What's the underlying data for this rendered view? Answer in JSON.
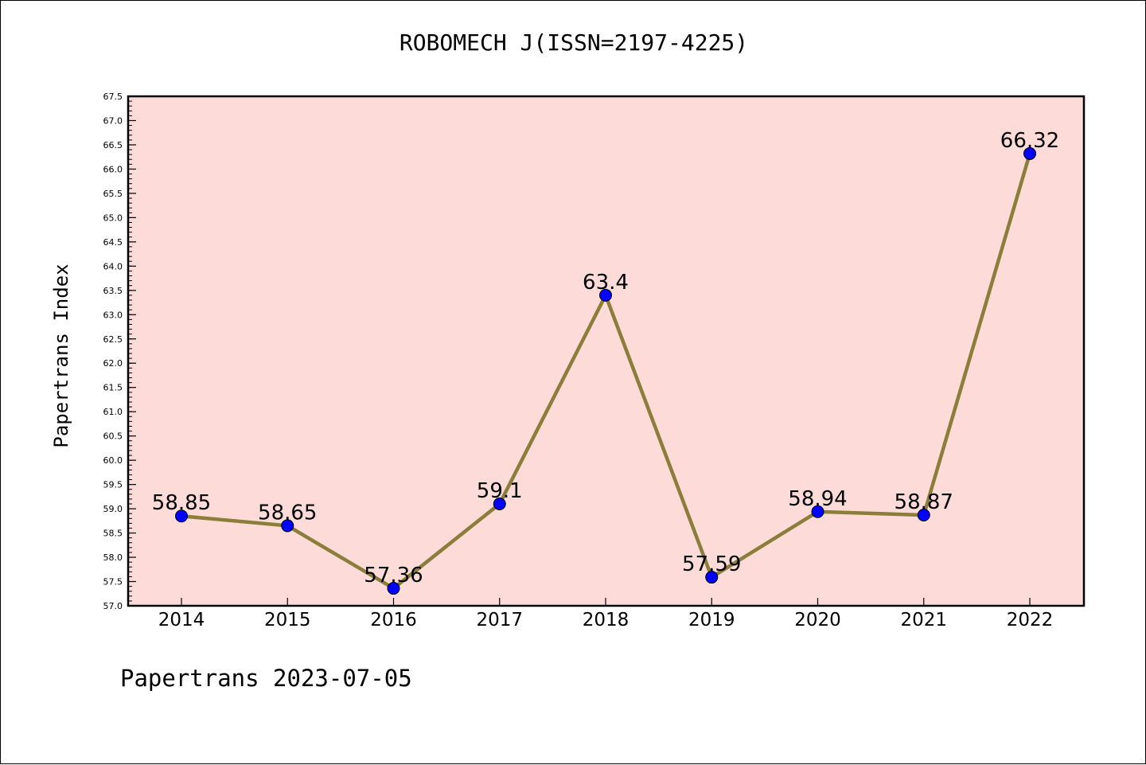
{
  "chart_data": {
    "type": "line",
    "title": "ROBOMECH J(ISSN=2197-4225)",
    "ylabel": "Papertrans Index",
    "xlabel": "",
    "categories": [
      "2014",
      "2015",
      "2016",
      "2017",
      "2018",
      "2019",
      "2020",
      "2021",
      "2022"
    ],
    "series": [
      {
        "values": [
          58.85,
          58.65,
          57.36,
          59.1,
          63.4,
          57.59,
          58.94,
          58.87,
          66.32
        ],
        "data_labels": [
          "58.85",
          "58.65",
          "57.36",
          "59.1",
          "63.4",
          "57.59",
          "58.94",
          "58.87",
          "66.32"
        ]
      }
    ],
    "ylim": [
      57.0,
      67.5
    ],
    "y_ticks": [
      "57.0",
      "57.5",
      "58.0",
      "58.5",
      "59.0",
      "59.5",
      "60.0",
      "60.5",
      "61.0",
      "61.5",
      "62.0",
      "62.5",
      "63.0",
      "63.5",
      "64.0",
      "64.5",
      "65.0",
      "65.5",
      "66.0",
      "66.5",
      "67.0",
      "67.5"
    ],
    "grid": false,
    "legend": "none",
    "colors": {
      "plot_background": "#fddbd8",
      "line": "#8b7d3a",
      "marker": "#0000ff",
      "axes": "#000000"
    }
  },
  "footer": "Papertrans 2023-07-05"
}
